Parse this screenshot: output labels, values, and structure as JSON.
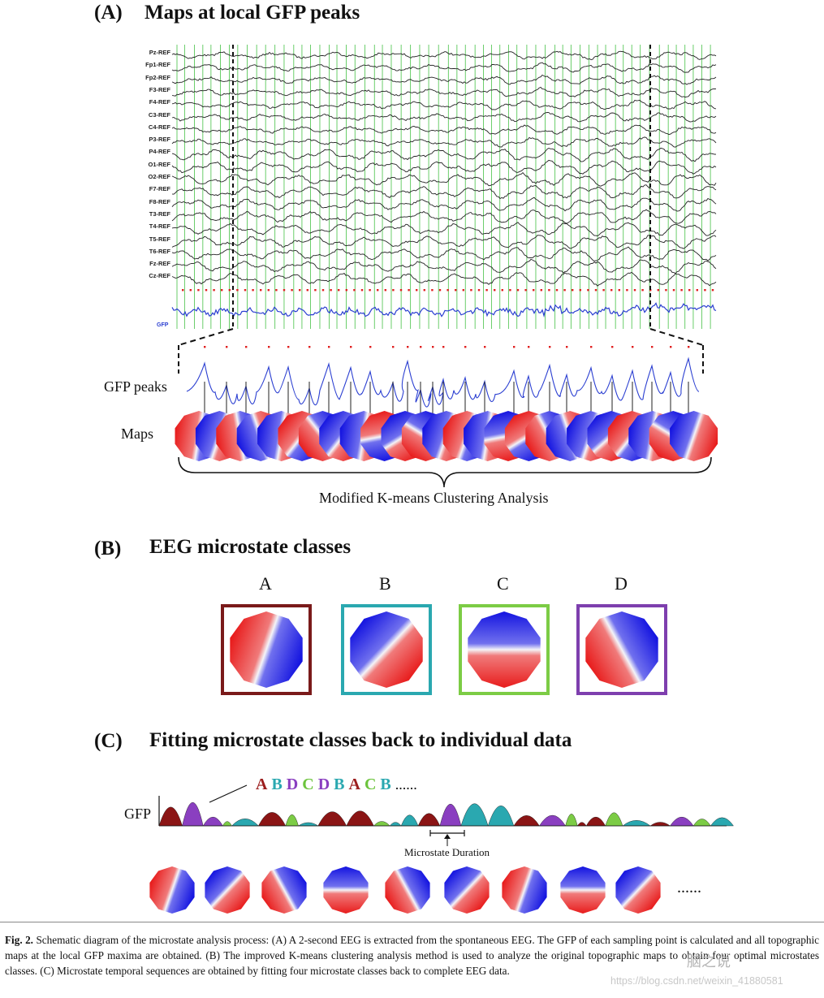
{
  "panelA": {
    "label": "(A)",
    "title": "Maps at local GFP peaks",
    "channels": [
      "Pz-REF",
      "Fp1-REF",
      "Fp2-REF",
      "F3-REF",
      "F4-REF",
      "C3-REF",
      "C4-REF",
      "P3-REF",
      "P4-REF",
      "O1-REF",
      "O2-REF",
      "F7-REF",
      "F8-REF",
      "T3-REF",
      "T4-REF",
      "T5-REF",
      "T6-REF",
      "Fz-REF",
      "Cz-REF"
    ],
    "gfp_trace_label": "GFP",
    "gfp_peaks_label": "GFP peaks",
    "maps_label": "Maps",
    "clustering_label": "Modified K-means  Clustering Analysis"
  },
  "panelB": {
    "label": "(B)",
    "title": "EEG microstate classes",
    "classes": [
      {
        "letter": "A",
        "border_color": "#7a1a1a"
      },
      {
        "letter": "B",
        "border_color": "#2aa8b0"
      },
      {
        "letter": "C",
        "border_color": "#7ccc45"
      },
      {
        "letter": "D",
        "border_color": "#7e3fae"
      }
    ]
  },
  "panelC": {
    "label": "(C)",
    "title": "Fitting microstate classes back to individual data",
    "gfp_label": "GFP",
    "sequence": [
      {
        "letter": "A",
        "color": "#9b1c1c"
      },
      {
        "letter": "B",
        "color": "#2aa8b0"
      },
      {
        "letter": "D",
        "color": "#8a3fc0"
      },
      {
        "letter": "C",
        "color": "#6cc43c"
      },
      {
        "letter": "D",
        "color": "#8a3fc0"
      },
      {
        "letter": "B",
        "color": "#2aa8b0"
      },
      {
        "letter": "A",
        "color": "#9b1c1c"
      },
      {
        "letter": "C",
        "color": "#6cc43c"
      },
      {
        "letter": "B",
        "color": "#2aa8b0"
      }
    ],
    "sequence_ellipsis": "......",
    "duration_label": "Microstate Duration",
    "maps_ellipsis": "......"
  },
  "caption": {
    "fig": "Fig. 2.",
    "text": " Schematic diagram of the microstate analysis process: (A) A 2-second EEG is extracted from the spontaneous EEG. The GFP of each sampling point is calculated and all topographic maps at the local GFP maxima are obtained. (B) The improved K-means clustering analysis method is used to analyze the original topographic maps to obtain four optimal microstates classes. (C) Microstate temporal sequences are obtained by fitting four microstate classes back to complete EEG data."
  },
  "watermark": {
    "logo_text": "脑之说",
    "url": "https://blog.csdn.net/weixin_41880581"
  },
  "colors": {
    "eeg_trace": "#222222",
    "grid_green": "#5ac85a",
    "peak_red": "#e02020",
    "gfp_blue": "#2b3fd1",
    "map_red": "#e81c1c",
    "map_blue": "#1414e0"
  }
}
